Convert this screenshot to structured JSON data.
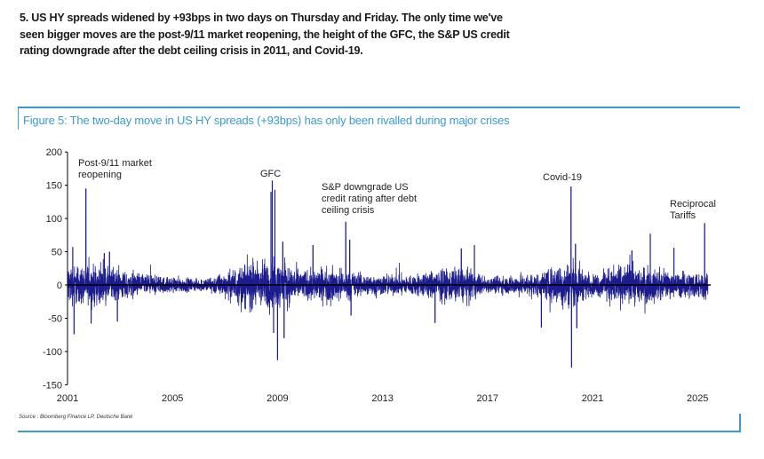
{
  "intro_text": "5. US HY spreads widened by +93bps in two days on Thursday and Friday. The only time we've seen bigger moves are the post-9/11 market reopening, the height of the GFC, the S&P US credit rating downgrade after the debt ceiling crisis in 2011, and Covid-19.",
  "figure": {
    "caption": "Figure 5: The two-day move in US HY spreads (+93bps) has only been rivalled during major crises",
    "source": "Source : Bloomberg Finance LP, Deutsche Bank",
    "accent_color": "#3a9bd0"
  },
  "chart_data": {
    "type": "line",
    "title": "",
    "xlabel": "",
    "ylabel": "",
    "xlim": [
      2001,
      2025.4
    ],
    "ylim": [
      -150,
      200
    ],
    "x_ticks": [
      "2001",
      "2005",
      "2009",
      "2013",
      "2017",
      "2021",
      "2025"
    ],
    "y_ticks": [
      "200",
      "150",
      "100",
      "50",
      "0",
      "-50",
      "-100",
      "-150"
    ],
    "grid": false,
    "series_color": "#1c1c8f",
    "zero_line": true,
    "typical_amplitude_by_year": {
      "2001": 20,
      "2002": 20,
      "2003": 15,
      "2004": 10,
      "2005": 8,
      "2006": 6,
      "2007": 12,
      "2008": 26,
      "2009": 24,
      "2010": 15,
      "2011": 18,
      "2012": 12,
      "2013": 10,
      "2014": 10,
      "2015": 15,
      "2016": 18,
      "2017": 8,
      "2018": 10,
      "2019": 12,
      "2020": 24,
      "2021": 10,
      "2022": 20,
      "2023": 18,
      "2024": 12,
      "2025": 14
    },
    "notable_points": [
      {
        "date": 2001.2,
        "value": 57
      },
      {
        "date": 2001.25,
        "value": -74
      },
      {
        "date": 2001.7,
        "value": 145
      },
      {
        "date": 2001.9,
        "value": -58
      },
      {
        "date": 2002.4,
        "value": 48
      },
      {
        "date": 2002.6,
        "value": 50
      },
      {
        "date": 2002.9,
        "value": -55
      },
      {
        "date": 2008.75,
        "value": 140
      },
      {
        "date": 2008.8,
        "value": 157
      },
      {
        "date": 2008.85,
        "value": -72
      },
      {
        "date": 2008.9,
        "value": 143
      },
      {
        "date": 2009.0,
        "value": -113
      },
      {
        "date": 2009.2,
        "value": 65
      },
      {
        "date": 2009.25,
        "value": -80
      },
      {
        "date": 2010.35,
        "value": 60
      },
      {
        "date": 2011.6,
        "value": 95
      },
      {
        "date": 2011.75,
        "value": 68
      },
      {
        "date": 2011.8,
        "value": -46
      },
      {
        "date": 2015.0,
        "value": -57
      },
      {
        "date": 2016.0,
        "value": 55
      },
      {
        "date": 2016.5,
        "value": 60
      },
      {
        "date": 2019.05,
        "value": -64
      },
      {
        "date": 2020.18,
        "value": 148
      },
      {
        "date": 2020.2,
        "value": -124
      },
      {
        "date": 2020.35,
        "value": 62
      },
      {
        "date": 2020.4,
        "value": -65
      },
      {
        "date": 2022.5,
        "value": 52
      },
      {
        "date": 2023.2,
        "value": 77
      },
      {
        "date": 2024.1,
        "value": 56
      },
      {
        "date": 2025.27,
        "value": 93
      }
    ],
    "annotations": [
      {
        "label_lines": [
          "Post-9/11 market",
          "reopening"
        ],
        "date": 2001.7
      },
      {
        "label_lines": [
          "GFC"
        ],
        "date": 2008.8
      },
      {
        "label_lines": [
          "S&P downgrade US",
          "credit rating after debt",
          "ceiling crisis"
        ],
        "date": 2011.6
      },
      {
        "label_lines": [
          "Covid-19"
        ],
        "date": 2020.18
      },
      {
        "label_lines": [
          "Reciprocal",
          "Tariffs"
        ],
        "date": 2025.27
      }
    ]
  }
}
